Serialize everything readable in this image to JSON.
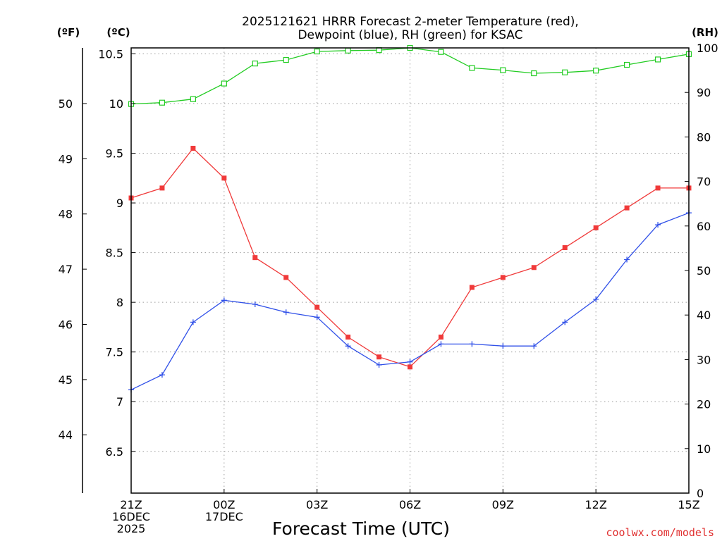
{
  "title": {
    "line1": "2025121621 HRRR Forecast 2-meter Temperature (red),",
    "line2": "Dewpoint (blue), RH (green) for KSAC"
  },
  "credit": "coolwx.com/models",
  "colors": {
    "temperature": "#f03a3a",
    "dewpoint": "#3050e8",
    "rh": "#22cc22",
    "credit": "#e03030",
    "grid": "#9a9a9a"
  },
  "chart_data": {
    "type": "line",
    "title": "2025121621 HRRR Forecast 2-meter Temperature (red), Dewpoint (blue), RH (green) for KSAC",
    "xlabel": "Forecast Time (UTC)",
    "x_hours": [
      0,
      1,
      2,
      3,
      4,
      5,
      6,
      7,
      8,
      9,
      10,
      11,
      12,
      13,
      14,
      15,
      16,
      17,
      18
    ],
    "x_ticks": [
      {
        "hour": 0,
        "lines": [
          "21Z",
          "16DEC",
          "2025"
        ]
      },
      {
        "hour": 3,
        "lines": [
          "00Z",
          "17DEC"
        ]
      },
      {
        "hour": 6,
        "lines": [
          "03Z"
        ]
      },
      {
        "hour": 9,
        "lines": [
          "06Z"
        ]
      },
      {
        "hour": 12,
        "lines": [
          "09Z"
        ]
      },
      {
        "hour": 15,
        "lines": [
          "12Z"
        ]
      },
      {
        "hour": 18,
        "lines": [
          "15Z"
        ]
      }
    ],
    "left_axis_celsius": {
      "unit_label": "(ºC)",
      "range": [
        6.08,
        10.56
      ],
      "ticks": [
        "6.5",
        "7",
        "7.5",
        "8",
        "8.5",
        "9",
        "9.5",
        "10",
        "10.5"
      ]
    },
    "left_axis_fahrenheit": {
      "unit_label": "(ºF)",
      "ticks": [
        "44",
        "45",
        "46",
        "47",
        "48",
        "49",
        "50"
      ]
    },
    "right_axis_rh": {
      "unit_label": "(RH)",
      "range": [
        0,
        100
      ],
      "ticks": [
        "0",
        "10",
        "20",
        "30",
        "40",
        "50",
        "60",
        "70",
        "80",
        "90",
        "100"
      ]
    },
    "series": [
      {
        "name": "Temperature",
        "axis": "celsius",
        "marker": "filled-square",
        "values": [
          9.05,
          9.15,
          9.55,
          9.25,
          8.45,
          8.25,
          7.95,
          7.65,
          7.45,
          7.35,
          7.65,
          8.15,
          8.25,
          8.35,
          8.55,
          8.75,
          8.95,
          9.15,
          9.15
        ]
      },
      {
        "name": "Dewpoint",
        "axis": "celsius",
        "marker": "plus",
        "values": [
          7.12,
          7.27,
          7.8,
          8.02,
          7.98,
          7.9,
          7.85,
          7.56,
          7.37,
          7.4,
          7.58,
          7.58,
          7.56,
          7.56,
          7.8,
          8.03,
          8.43,
          8.78,
          8.9
        ]
      },
      {
        "name": "RH",
        "axis": "rh",
        "marker": "open-square",
        "values": [
          87.4,
          87.7,
          88.5,
          92,
          96.5,
          97.3,
          99.2,
          99.4,
          99.5,
          100,
          99.1,
          95.5,
          95,
          94.3,
          94.5,
          94.9,
          96.2,
          97.4,
          98.6
        ]
      }
    ]
  }
}
